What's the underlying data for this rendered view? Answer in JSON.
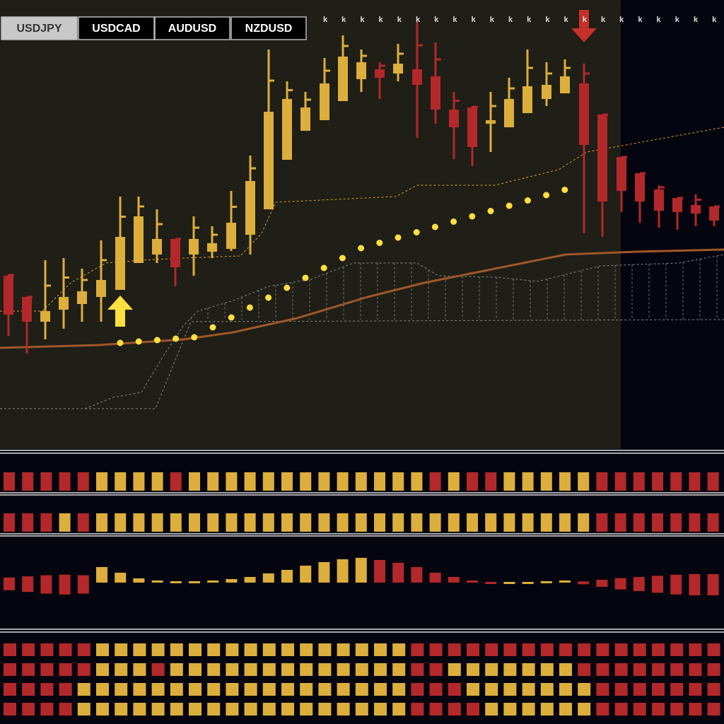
{
  "tabs": [
    "USDJPY",
    "USDCAD",
    "AUDUSD",
    "NZDUSD"
  ],
  "markers": [
    "k",
    "k",
    "k",
    "k",
    "k",
    "k",
    "k",
    "k",
    "k",
    "k",
    "k",
    "k",
    "k",
    "k",
    "k",
    "k",
    "k",
    "k",
    "k",
    "k",
    "k",
    "k"
  ]
}
